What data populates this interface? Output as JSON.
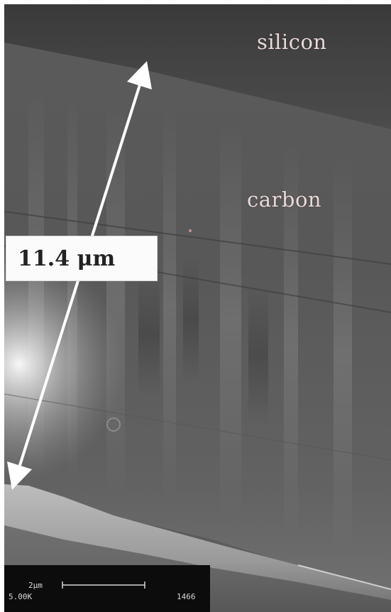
{
  "image": {
    "labels": {
      "top_layer": "silicon",
      "middle_layer": "carbon"
    },
    "measurement": {
      "text": "11.4 μm"
    },
    "scale_bar": {
      "length_label": "2μm",
      "magnification": "5.00K",
      "image_id": "1466"
    }
  }
}
